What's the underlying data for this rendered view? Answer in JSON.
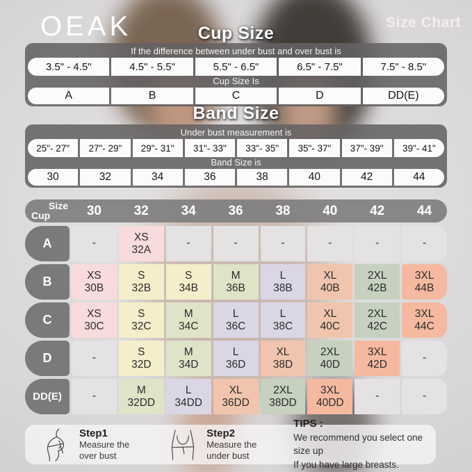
{
  "brand": "OEAK",
  "page_title": "Size Chart",
  "palette": {
    "XS": "#f8dbdc",
    "S": "#f5eecb",
    "M": "#dfe3c8",
    "L": "#dbd6e5",
    "XL": "#f1c5ad",
    "2XL": "#c6d1c0",
    "3XL": "#f5b9a0",
    "empty": "#e4e2e3"
  },
  "cup_size_section": {
    "title": "Cup Size",
    "banner": "If the  difference between under bust and over bust is",
    "ranges": [
      "3.5\" -  4.5\"",
      "4.5\" -  5.5\"",
      "5.5\" -  6.5\"",
      "6.5\" -  7.5\"",
      "7.5\" -  8.5\""
    ],
    "result_banner": "Cup Size Is",
    "cups": [
      "A",
      "B",
      "C",
      "D",
      "DD(E)"
    ]
  },
  "band_size_section": {
    "title": "Band Size",
    "banner": "Under bust measurement is",
    "ranges": [
      "25\"- 27\"",
      "27\"- 29\"",
      "29\"- 31\"",
      "31\"- 33\"",
      "33\"- 35\"",
      "35\"- 37\"",
      "37\"- 39\"",
      "39\"- 41\""
    ],
    "result_banner": "Band Size is",
    "bands": [
      "30",
      "32",
      "34",
      "36",
      "38",
      "40",
      "42",
      "44"
    ]
  },
  "matrix": {
    "corner_top": "Size",
    "corner_bottom": "Cup",
    "columns": [
      "30",
      "32",
      "34",
      "36",
      "38",
      "40",
      "42",
      "44"
    ],
    "rows": [
      {
        "cup": "A",
        "cells": [
          {
            "size": "-",
            "code": "",
            "c": "empty"
          },
          {
            "size": "XS",
            "code": "32A",
            "c": "XS"
          },
          {
            "size": "-",
            "code": "",
            "c": "empty"
          },
          {
            "size": "-",
            "code": "",
            "c": "empty"
          },
          {
            "size": "-",
            "code": "",
            "c": "empty"
          },
          {
            "size": "-",
            "code": "",
            "c": "empty"
          },
          {
            "size": "-",
            "code": "",
            "c": "empty"
          },
          {
            "size": "-",
            "code": "",
            "c": "empty"
          }
        ]
      },
      {
        "cup": "B",
        "cells": [
          {
            "size": "XS",
            "code": "30B",
            "c": "XS"
          },
          {
            "size": "S",
            "code": "32B",
            "c": "S"
          },
          {
            "size": "S",
            "code": "34B",
            "c": "S"
          },
          {
            "size": "M",
            "code": "36B",
            "c": "M"
          },
          {
            "size": "L",
            "code": "38B",
            "c": "L"
          },
          {
            "size": "XL",
            "code": "40B",
            "c": "XL"
          },
          {
            "size": "2XL",
            "code": "42B",
            "c": "2XL"
          },
          {
            "size": "3XL",
            "code": "44B",
            "c": "3XL"
          }
        ]
      },
      {
        "cup": "C",
        "cells": [
          {
            "size": "XS",
            "code": "30C",
            "c": "XS"
          },
          {
            "size": "S",
            "code": "32C",
            "c": "S"
          },
          {
            "size": "M",
            "code": "34C",
            "c": "M"
          },
          {
            "size": "L",
            "code": "36C",
            "c": "L"
          },
          {
            "size": "L",
            "code": "38C",
            "c": "L"
          },
          {
            "size": "XL",
            "code": "40C",
            "c": "XL"
          },
          {
            "size": "2XL",
            "code": "42C",
            "c": "2XL"
          },
          {
            "size": "3XL",
            "code": "44C",
            "c": "3XL"
          }
        ]
      },
      {
        "cup": "D",
        "cells": [
          {
            "size": "-",
            "code": "",
            "c": "empty"
          },
          {
            "size": "S",
            "code": "32D",
            "c": "S"
          },
          {
            "size": "M",
            "code": "34D",
            "c": "M"
          },
          {
            "size": "L",
            "code": "36D",
            "c": "L"
          },
          {
            "size": "XL",
            "code": "38D",
            "c": "XL"
          },
          {
            "size": "2XL",
            "code": "40D",
            "c": "2XL"
          },
          {
            "size": "3XL",
            "code": "42D",
            "c": "3XL"
          },
          {
            "size": "-",
            "code": "",
            "c": "empty"
          }
        ]
      },
      {
        "cup": "DD(E)",
        "cells": [
          {
            "size": "-",
            "code": "",
            "c": "empty"
          },
          {
            "size": "M",
            "code": "32DD",
            "c": "M"
          },
          {
            "size": "L",
            "code": "34DD",
            "c": "L"
          },
          {
            "size": "XL",
            "code": "36DD",
            "c": "XL"
          },
          {
            "size": "2XL",
            "code": "38DD",
            "c": "2XL"
          },
          {
            "size": "3XL",
            "code": "40DD",
            "c": "3XL"
          },
          {
            "size": "-",
            "code": "",
            "c": "empty"
          },
          {
            "size": "-",
            "code": "",
            "c": "empty"
          }
        ]
      }
    ]
  },
  "footer": {
    "steps": [
      {
        "label": "Step1",
        "line1": "Measure the",
        "line2": "over bust",
        "icon": "measure-overbust-icon"
      },
      {
        "label": "Step2",
        "line1": "Measure the",
        "line2": "under bust",
        "icon": "measure-underbust-icon"
      }
    ],
    "tips": {
      "label": "TIPS :",
      "line1": "We recommend you select one size up",
      "line2": "If you have large breasts."
    }
  },
  "chart_data": [
    {
      "type": "table",
      "title": "Cup Size",
      "note": "If the difference between under bust and over bust is",
      "columns": [
        "3.5\" - 4.5\"",
        "4.5\" - 5.5\"",
        "5.5\" - 6.5\"",
        "6.5\" - 7.5\"",
        "7.5\" - 8.5\""
      ],
      "row_label": "Cup Size Is",
      "values": [
        "A",
        "B",
        "C",
        "D",
        "DD(E)"
      ]
    },
    {
      "type": "table",
      "title": "Band Size",
      "note": "Under bust measurement is",
      "columns": [
        "25\"- 27\"",
        "27\"- 29\"",
        "29\"- 31\"",
        "31\"- 33\"",
        "33\"- 35\"",
        "35\"- 37\"",
        "37\"- 39\"",
        "39\"- 41\""
      ],
      "row_label": "Band Size is",
      "values": [
        "30",
        "32",
        "34",
        "36",
        "38",
        "40",
        "42",
        "44"
      ]
    },
    {
      "type": "table",
      "title": "Cup x Band size matrix",
      "columns": [
        "30",
        "32",
        "34",
        "36",
        "38",
        "40",
        "42",
        "44"
      ],
      "rows": [
        {
          "cup": "A",
          "values": [
            "-",
            "XS 32A",
            "-",
            "-",
            "-",
            "-",
            "-",
            "-"
          ]
        },
        {
          "cup": "B",
          "values": [
            "XS 30B",
            "S 32B",
            "S 34B",
            "M 36B",
            "L 38B",
            "XL 40B",
            "2XL 42B",
            "3XL 44B"
          ]
        },
        {
          "cup": "C",
          "values": [
            "XS 30C",
            "S 32C",
            "M 34C",
            "L 36C",
            "L 38C",
            "XL 40C",
            "2XL 42C",
            "3XL 44C"
          ]
        },
        {
          "cup": "D",
          "values": [
            "-",
            "S 32D",
            "M 34D",
            "L 36D",
            "XL 38D",
            "2XL 40D",
            "3XL 42D",
            "-"
          ]
        },
        {
          "cup": "DD(E)",
          "values": [
            "-",
            "M 32DD",
            "L 34DD",
            "XL 36DD",
            "2XL 38DD",
            "3XL 40DD",
            "-",
            "-"
          ]
        }
      ]
    }
  ]
}
